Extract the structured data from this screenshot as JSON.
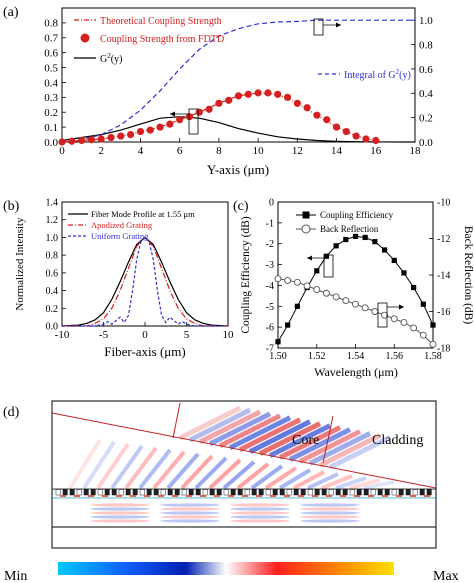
{
  "chart_data": [
    {
      "panel": "(a)",
      "type": "line",
      "xlabel": "Y-axis (μm)",
      "xlim": [
        0,
        18
      ],
      "xticks": [
        0,
        2,
        4,
        6,
        8,
        10,
        12,
        14,
        16,
        18
      ],
      "ylim_left": [
        0.0,
        0.9
      ],
      "yticks_left": [
        "0.0",
        "0.1",
        "0.2",
        "0.3",
        "0.4",
        "0.5",
        "0.6",
        "0.7",
        "0.8"
      ],
      "ylim_right": [
        0.0,
        1.1
      ],
      "yticks_right": [
        "0.0",
        "0.2",
        "0.4",
        "0.6",
        "0.8",
        "1.0"
      ],
      "legend_left": [
        {
          "label": "Theoretical Coupling Strength",
          "color": "#d62020",
          "style": "dash-dot"
        },
        {
          "label": "Coupling Strength from FDTD",
          "color": "#d62020",
          "style": "circle-marker"
        },
        {
          "label": "G",
          "sup": "2",
          "tail": "(y)",
          "color": "#000000",
          "style": "solid"
        }
      ],
      "legend_right": {
        "label": "Integral of G",
        "sup": "2",
        "tail": "(y)",
        "color": "#3030d0",
        "style": "dashed"
      },
      "series": [
        {
          "name": "G2(y)",
          "axis": "left",
          "color": "#000000",
          "x": [
            0,
            1,
            2,
            3,
            4,
            5,
            6,
            7,
            8,
            9,
            10,
            11,
            12,
            13,
            14,
            15,
            16,
            18
          ],
          "values": [
            0.01,
            0.03,
            0.05,
            0.08,
            0.12,
            0.16,
            0.17,
            0.16,
            0.13,
            0.09,
            0.06,
            0.035,
            0.02,
            0.01,
            0.005,
            0.002,
            0.001,
            0.0
          ]
        },
        {
          "name": "Integral of G2(y)",
          "axis": "right",
          "color": "#3030d0",
          "x": [
            0,
            1,
            2,
            3,
            4,
            5,
            6,
            7,
            8,
            9,
            10,
            11,
            12,
            13,
            14,
            15,
            16,
            17,
            18
          ],
          "values": [
            0.0,
            0.02,
            0.06,
            0.14,
            0.26,
            0.42,
            0.6,
            0.76,
            0.87,
            0.93,
            0.97,
            0.985,
            0.99,
            1.0,
            1.0,
            1.0,
            1.0,
            1.0,
            1.0
          ]
        },
        {
          "name": "Theoretical Coupling Strength",
          "axis": "left",
          "color": "#d62020",
          "x": [
            0,
            1,
            2,
            3,
            4,
            5,
            6,
            7,
            8,
            9,
            10,
            11,
            12,
            13,
            14,
            15,
            16
          ],
          "values": [
            0.0,
            0.01,
            0.02,
            0.04,
            0.07,
            0.1,
            0.15,
            0.2,
            0.26,
            0.31,
            0.33,
            0.32,
            0.26,
            0.18,
            0.1,
            0.04,
            0.01
          ]
        },
        {
          "name": "Coupling Strength from FDTD",
          "axis": "left",
          "color": "#d62020",
          "x": [
            0,
            0.5,
            1,
            1.5,
            2,
            2.5,
            3,
            3.5,
            4,
            4.5,
            5,
            5.5,
            6,
            6.5,
            7,
            7.5,
            8,
            8.5,
            9,
            9.5,
            10,
            10.5,
            11,
            11.5,
            12,
            12.5,
            13,
            13.5,
            14,
            14.5,
            15,
            15.5,
            16
          ],
          "values": [
            0.0,
            0.005,
            0.01,
            0.015,
            0.02,
            0.03,
            0.04,
            0.05,
            0.07,
            0.08,
            0.1,
            0.12,
            0.15,
            0.17,
            0.2,
            0.22,
            0.26,
            0.28,
            0.31,
            0.32,
            0.33,
            0.33,
            0.32,
            0.3,
            0.26,
            0.23,
            0.18,
            0.15,
            0.1,
            0.07,
            0.04,
            0.02,
            0.01
          ]
        }
      ]
    },
    {
      "panel": "(b)",
      "type": "line",
      "xlabel": "Fiber-axis (μm)",
      "ylabel": "Normalized Intensity",
      "xlim": [
        -10,
        10
      ],
      "xticks": [
        -10,
        -5,
        0,
        5,
        10
      ],
      "ylim": [
        0.0,
        1.4
      ],
      "yticks": [
        "0.0",
        "0.2",
        "0.4",
        "0.6",
        "0.8",
        "1.0",
        "1.2",
        "1.4"
      ],
      "legend": [
        {
          "label": "Fiber Mode Profile at 1.55 μm",
          "color": "#000000",
          "style": "solid"
        },
        {
          "label": "Apodized Grating",
          "color": "#d62020",
          "style": "dash-dot"
        },
        {
          "label": "Uniform Grating",
          "color": "#3030d0",
          "style": "dashed"
        }
      ],
      "series": [
        {
          "name": "Fiber Mode Profile at 1.55 μm",
          "color": "#000000",
          "x": [
            -10,
            -8,
            -7,
            -6,
            -5,
            -4,
            -3,
            -2,
            -1,
            0,
            1,
            2,
            3,
            4,
            5,
            6,
            7,
            8,
            10
          ],
          "values": [
            0.0,
            0.01,
            0.03,
            0.07,
            0.15,
            0.3,
            0.5,
            0.72,
            0.92,
            1.0,
            0.92,
            0.72,
            0.5,
            0.3,
            0.15,
            0.07,
            0.03,
            0.01,
            0.0
          ]
        },
        {
          "name": "Apodized Grating",
          "color": "#d62020",
          "x": [
            -10,
            -7,
            -6,
            -5,
            -4,
            -3,
            -2,
            -1,
            0,
            1,
            2,
            3,
            4,
            5,
            6,
            7,
            10
          ],
          "values": [
            0.0,
            0.0,
            0.03,
            0.08,
            0.2,
            0.4,
            0.65,
            0.9,
            1.0,
            0.9,
            0.65,
            0.4,
            0.2,
            0.08,
            0.03,
            0.0,
            0.0
          ]
        },
        {
          "name": "Uniform Grating",
          "color": "#3030d0",
          "x": [
            -10,
            -6,
            -5,
            -4.5,
            -4,
            -3.5,
            -3,
            -2.5,
            -2,
            -1.5,
            -1,
            -0.5,
            0,
            0.5,
            1,
            1.5,
            2,
            2.5,
            3,
            3.5,
            4,
            4.5,
            5,
            6,
            10
          ],
          "values": [
            0.0,
            0.0,
            0.02,
            0.05,
            0.02,
            0.06,
            0.1,
            0.04,
            0.12,
            0.4,
            0.75,
            0.95,
            1.0,
            0.95,
            0.75,
            0.4,
            0.12,
            0.04,
            0.1,
            0.06,
            0.02,
            0.05,
            0.02,
            0.0,
            0.0
          ]
        }
      ]
    },
    {
      "panel": "(c)",
      "type": "line",
      "xlabel": "Wavelength (μm)",
      "ylabel_left": "Coupling Efficiency (dB)",
      "ylabel_right": "Back Reflection (dB)",
      "xlim": [
        1.5,
        1.58
      ],
      "xticks": [
        "1.50",
        "1.52",
        "1.54",
        "1.56",
        "1.58"
      ],
      "ylim_left": [
        -7,
        0
      ],
      "yticks_left": [
        "-7",
        "-6",
        "-5",
        "-4",
        "-3",
        "-2",
        "-1",
        "0"
      ],
      "ylim_right": [
        -18,
        -10
      ],
      "yticks_right": [
        "-18",
        "-16",
        "-14",
        "-12",
        "-10"
      ],
      "legend": [
        {
          "label": "Coupling Efficiency",
          "color": "#000000",
          "style": "filled-square"
        },
        {
          "label": "Back Reflection",
          "color": "#555555",
          "style": "open-circle"
        }
      ],
      "series": [
        {
          "name": "Coupling Efficiency",
          "axis": "left",
          "color": "#000000",
          "x": [
            1.5,
            1.505,
            1.51,
            1.515,
            1.52,
            1.525,
            1.53,
            1.535,
            1.54,
            1.545,
            1.55,
            1.555,
            1.56,
            1.565,
            1.57,
            1.575,
            1.58
          ],
          "values": [
            -6.7,
            -5.9,
            -5.0,
            -4.1,
            -3.3,
            -2.6,
            -2.1,
            -1.8,
            -1.65,
            -1.7,
            -1.9,
            -2.3,
            -2.8,
            -3.4,
            -4.1,
            -4.9,
            -5.9
          ]
        },
        {
          "name": "Back Reflection",
          "axis": "right",
          "color": "#555555",
          "x": [
            1.5,
            1.505,
            1.51,
            1.515,
            1.52,
            1.525,
            1.53,
            1.535,
            1.54,
            1.545,
            1.55,
            1.555,
            1.56,
            1.565,
            1.57,
            1.575,
            1.58
          ],
          "values": [
            -14.2,
            -14.3,
            -14.4,
            -14.6,
            -14.8,
            -15.0,
            -15.2,
            -15.4,
            -15.6,
            -15.8,
            -16.0,
            -16.2,
            -16.4,
            -16.6,
            -16.9,
            -17.3,
            -17.8
          ]
        }
      ]
    },
    {
      "panel": "(d)",
      "type": "heatmap",
      "labels": {
        "core": "Core",
        "cladding": "Cladding"
      },
      "colorbar": {
        "min_label": "Min",
        "max_label": "Max",
        "colors": [
          "#00c8ff",
          "#1060ff",
          "#0020b0",
          "#ffffff",
          "#ff2020",
          "#ff9000",
          "#ffe000"
        ]
      }
    }
  ]
}
